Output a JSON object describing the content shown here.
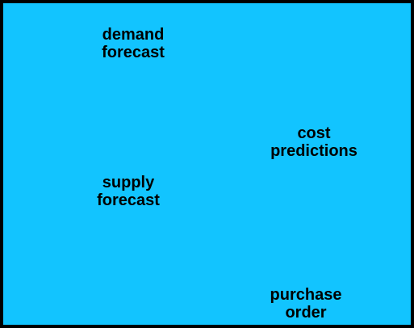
{
  "colors": {
    "border": "#000000",
    "background": "#12c4ff",
    "text": "#000000"
  },
  "labels": {
    "demand_forecast": {
      "line1": "demand",
      "line2": "forecast"
    },
    "cost_predictions": {
      "line1": "cost",
      "line2": "predictions"
    },
    "supply_forecast": {
      "line1": "supply",
      "line2": "forecast"
    },
    "purchase_order": {
      "line1": "purchase",
      "line2": "order"
    }
  }
}
